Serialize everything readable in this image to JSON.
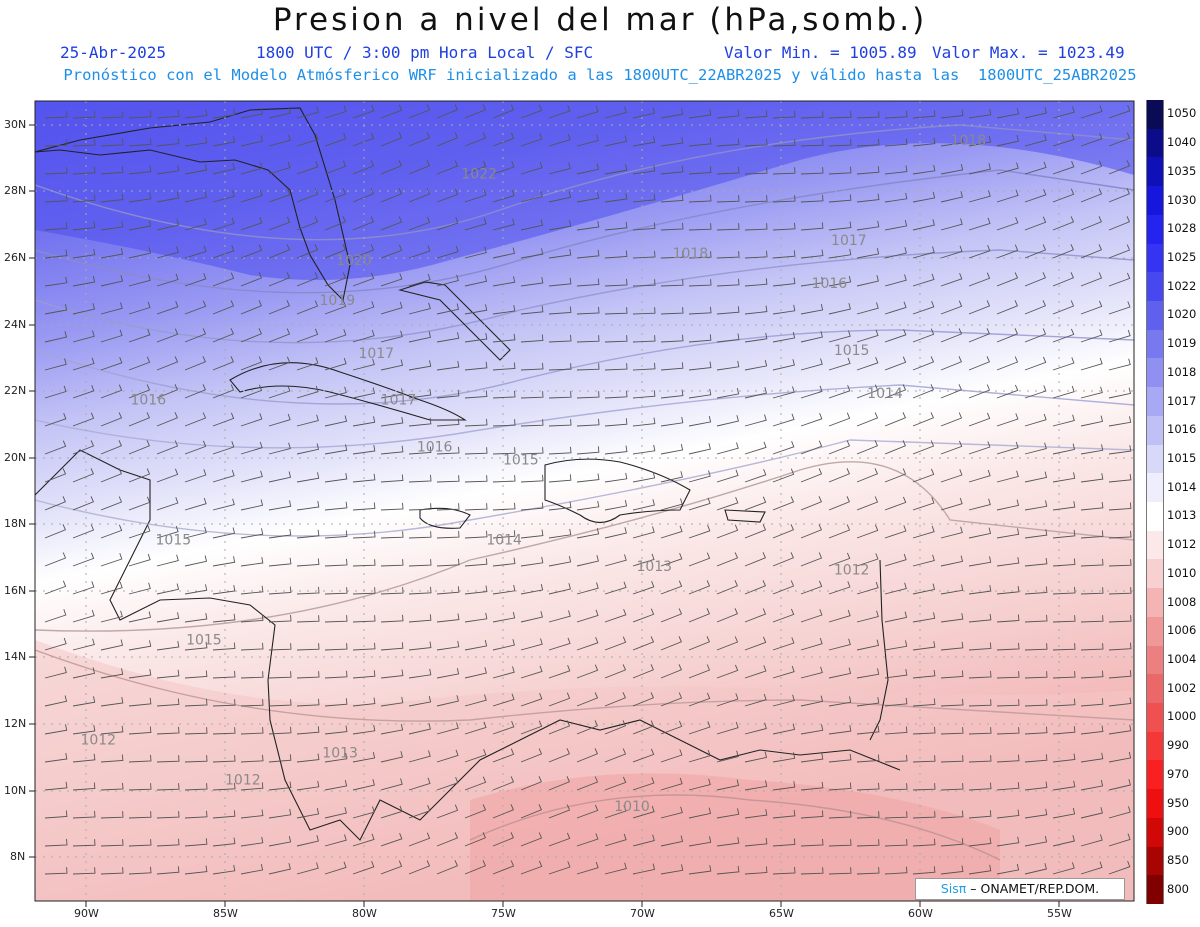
{
  "header": {
    "title": "Presion a nivel del mar (hPa,somb.)",
    "date": "25-Abr-2025",
    "time": "1800 UTC / 3:00 pm Hora Local / SFC",
    "vmin": "Valor Min. = 1005.89",
    "vmax": "Valor Max. = 1023.49",
    "subtitle": "Pronóstico con el Modelo Atmósferico WRF inicializado a las 1800UTC_22ABR2025 y válido hasta las  1800UTC_25ABR2025"
  },
  "map": {
    "lat_labels": [
      "30N",
      "28N",
      "26N",
      "24N",
      "22N",
      "20N",
      "18N",
      "16N",
      "14N",
      "12N",
      "10N",
      "8N"
    ],
    "lon_labels": [
      "90W",
      "85W",
      "80W",
      "75W",
      "70W",
      "65W",
      "60W",
      "55W"
    ],
    "contour_labels": [
      {
        "text": "1022",
        "lon": -76.5,
        "lat": 28.4
      },
      {
        "text": "1018",
        "lon": -58.9,
        "lat": 29.4
      },
      {
        "text": "1020",
        "lon": -81.0,
        "lat": 25.8
      },
      {
        "text": "1018",
        "lon": -68.9,
        "lat": 26.0
      },
      {
        "text": "1017",
        "lon": -63.2,
        "lat": 26.4
      },
      {
        "text": "1019",
        "lon": -81.6,
        "lat": 24.6
      },
      {
        "text": "1016",
        "lon": -63.9,
        "lat": 25.1
      },
      {
        "text": "1017",
        "lon": -80.2,
        "lat": 23.0
      },
      {
        "text": "1015",
        "lon": -63.1,
        "lat": 23.1
      },
      {
        "text": "1014",
        "lon": -61.9,
        "lat": 21.8
      },
      {
        "text": "1016",
        "lon": -88.4,
        "lat": 21.6
      },
      {
        "text": "1017",
        "lon": -79.4,
        "lat": 21.6
      },
      {
        "text": "1016",
        "lon": -78.1,
        "lat": 20.2
      },
      {
        "text": "1015",
        "lon": -75.0,
        "lat": 19.8
      },
      {
        "text": "1014",
        "lon": -75.6,
        "lat": 17.4
      },
      {
        "text": "1015",
        "lon": -87.5,
        "lat": 17.4
      },
      {
        "text": "1013",
        "lon": -70.2,
        "lat": 16.6
      },
      {
        "text": "1012",
        "lon": -63.1,
        "lat": 16.5
      },
      {
        "text": "1015",
        "lon": -86.4,
        "lat": 14.4
      },
      {
        "text": "1012",
        "lon": -90.2,
        "lat": 11.4
      },
      {
        "text": "1013",
        "lon": -81.5,
        "lat": 11.0
      },
      {
        "text": "1012",
        "lon": -85.0,
        "lat": 10.2
      },
      {
        "text": "1010",
        "lon": -71.0,
        "lat": 9.4
      }
    ]
  },
  "colorbar": {
    "labels": [
      "1050",
      "1040",
      "1035",
      "1030",
      "1028",
      "1025",
      "1022",
      "1020",
      "1019",
      "1018",
      "1017",
      "1016",
      "1015",
      "1014",
      "1013",
      "1012",
      "1010",
      "1008",
      "1006",
      "1004",
      "1002",
      "1000",
      "990",
      "970",
      "950",
      "900",
      "850",
      "800"
    ],
    "colors": [
      "#0a0a55",
      "#0c0c8a",
      "#1010b8",
      "#1616dd",
      "#2424ee",
      "#3434f2",
      "#4848f0",
      "#6060ee",
      "#7878f0",
      "#9090f2",
      "#a8a8f4",
      "#c0c0f6",
      "#d8d8f9",
      "#eeeefc",
      "#ffffff",
      "#fce8e8",
      "#f8d0d0",
      "#f4b4b4",
      "#f09898",
      "#ec8080",
      "#ea6868",
      "#f05050",
      "#f43838",
      "#f82020",
      "#ee1010",
      "#d00808",
      "#a80404",
      "#800000"
    ]
  },
  "credit": {
    "brand": "Sisπ",
    "text": "– ONAMET/REP.DOM."
  }
}
